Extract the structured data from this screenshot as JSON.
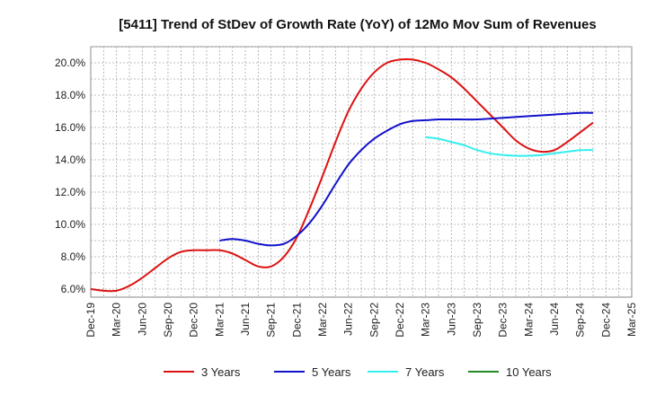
{
  "chart_data": {
    "type": "line",
    "title": "[5411]  Trend of StDev of Growth Rate (YoY) of 12Mo Mov Sum of Revenues",
    "xlabel": "",
    "ylabel": "",
    "ylim": [
      5.5,
      21.0
    ],
    "yticks": [
      6.0,
      8.0,
      10.0,
      12.0,
      14.0,
      16.0,
      18.0,
      20.0
    ],
    "ytick_labels": [
      "6.0%",
      "8.0%",
      "10.0%",
      "12.0%",
      "14.0%",
      "16.0%",
      "18.0%",
      "20.0%"
    ],
    "x_categories": [
      "Dec-19",
      "Mar-20",
      "Jun-20",
      "Sep-20",
      "Dec-20",
      "Mar-21",
      "Jun-21",
      "Sep-21",
      "Dec-21",
      "Mar-22",
      "Jun-22",
      "Sep-22",
      "Dec-22",
      "Mar-23",
      "Jun-23",
      "Sep-23",
      "Dec-23",
      "Mar-24",
      "Jun-24",
      "Sep-24",
      "Dec-24",
      "Mar-25"
    ],
    "grid": true,
    "legend_position": "bottom",
    "series": [
      {
        "name": "3 Years",
        "color": "#dd1111",
        "points": [
          [
            0,
            6.0
          ],
          [
            0.5,
            5.9
          ],
          [
            1,
            5.9
          ],
          [
            1.5,
            6.2
          ],
          [
            2,
            6.7
          ],
          [
            2.5,
            7.3
          ],
          [
            3,
            7.9
          ],
          [
            3.5,
            8.3
          ],
          [
            4,
            8.4
          ],
          [
            4.5,
            8.4
          ],
          [
            5,
            8.4
          ],
          [
            5.5,
            8.2
          ],
          [
            6,
            7.8
          ],
          [
            6.5,
            7.4
          ],
          [
            7,
            7.4
          ],
          [
            7.5,
            8.0
          ],
          [
            8,
            9.2
          ],
          [
            8.5,
            11.0
          ],
          [
            9,
            13.0
          ],
          [
            9.5,
            15.1
          ],
          [
            10,
            17.0
          ],
          [
            10.5,
            18.4
          ],
          [
            11,
            19.4
          ],
          [
            11.5,
            20.0
          ],
          [
            12,
            20.2
          ],
          [
            12.5,
            20.2
          ],
          [
            13,
            20.0
          ],
          [
            13.5,
            19.6
          ],
          [
            14,
            19.1
          ],
          [
            14.5,
            18.4
          ],
          [
            15,
            17.6
          ],
          [
            15.5,
            16.8
          ],
          [
            16,
            16.0
          ],
          [
            16.5,
            15.2
          ],
          [
            17,
            14.7
          ],
          [
            17.5,
            14.5
          ],
          [
            18,
            14.6
          ],
          [
            18.5,
            15.1
          ],
          [
            19,
            15.7
          ],
          [
            19.5,
            16.3
          ]
        ]
      },
      {
        "name": "5 Years",
        "color": "#1111cc",
        "points": [
          [
            5,
            9.0
          ],
          [
            5.5,
            9.1
          ],
          [
            6,
            9.0
          ],
          [
            6.5,
            8.8
          ],
          [
            7,
            8.7
          ],
          [
            7.5,
            8.8
          ],
          [
            8,
            9.3
          ],
          [
            8.5,
            10.1
          ],
          [
            9,
            11.2
          ],
          [
            9.5,
            12.5
          ],
          [
            10,
            13.7
          ],
          [
            10.5,
            14.6
          ],
          [
            11,
            15.3
          ],
          [
            11.5,
            15.8
          ],
          [
            12,
            16.2
          ],
          [
            12.5,
            16.4
          ],
          [
            13,
            16.45
          ],
          [
            13.5,
            16.5
          ],
          [
            14,
            16.5
          ],
          [
            15,
            16.5
          ],
          [
            16,
            16.6
          ],
          [
            17,
            16.7
          ],
          [
            18,
            16.8
          ],
          [
            19,
            16.9
          ],
          [
            19.5,
            16.9
          ]
        ]
      },
      {
        "name": "7 Years",
        "color": "#33eeee",
        "points": [
          [
            13,
            15.4
          ],
          [
            13.5,
            15.3
          ],
          [
            14,
            15.1
          ],
          [
            14.5,
            14.9
          ],
          [
            15,
            14.6
          ],
          [
            15.5,
            14.4
          ],
          [
            16,
            14.3
          ],
          [
            16.5,
            14.25
          ],
          [
            17,
            14.25
          ],
          [
            17.5,
            14.3
          ],
          [
            18,
            14.4
          ],
          [
            18.5,
            14.5
          ],
          [
            19,
            14.6
          ],
          [
            19.5,
            14.6
          ]
        ]
      },
      {
        "name": "10 Years",
        "color": "#228822",
        "points": []
      }
    ]
  }
}
